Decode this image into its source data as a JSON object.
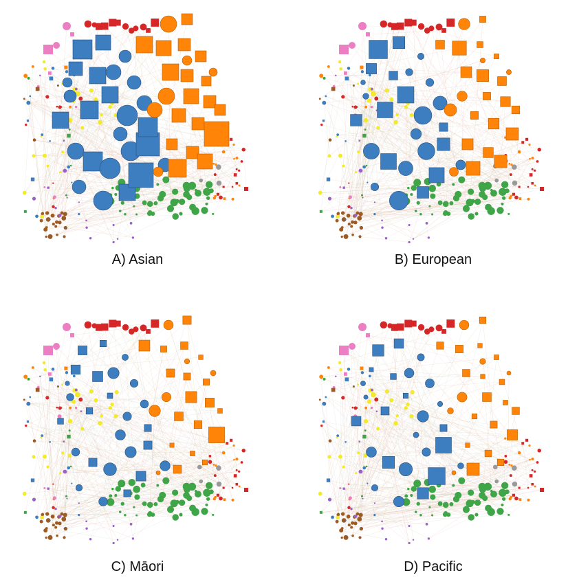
{
  "colors": {
    "blue": "#3c7ebf",
    "orange": "#ff8407",
    "green": "#3fa548",
    "red": "#d62728",
    "pink": "#ec7fc4",
    "brown": "#9c5a24",
    "yellow": "#f2ea2a",
    "purple": "#9a62c9",
    "gray": "#9a9a9a",
    "edge": "#e6b8a6"
  },
  "panels": [
    {
      "id": "a",
      "caption": "A) Asian",
      "variant": 0
    },
    {
      "id": "b",
      "caption": "B) European",
      "variant": 1
    },
    {
      "id": "c",
      "caption": "C) Māori",
      "variant": 2
    },
    {
      "id": "d",
      "caption": "D) Pacific",
      "variant": 3
    }
  ]
}
